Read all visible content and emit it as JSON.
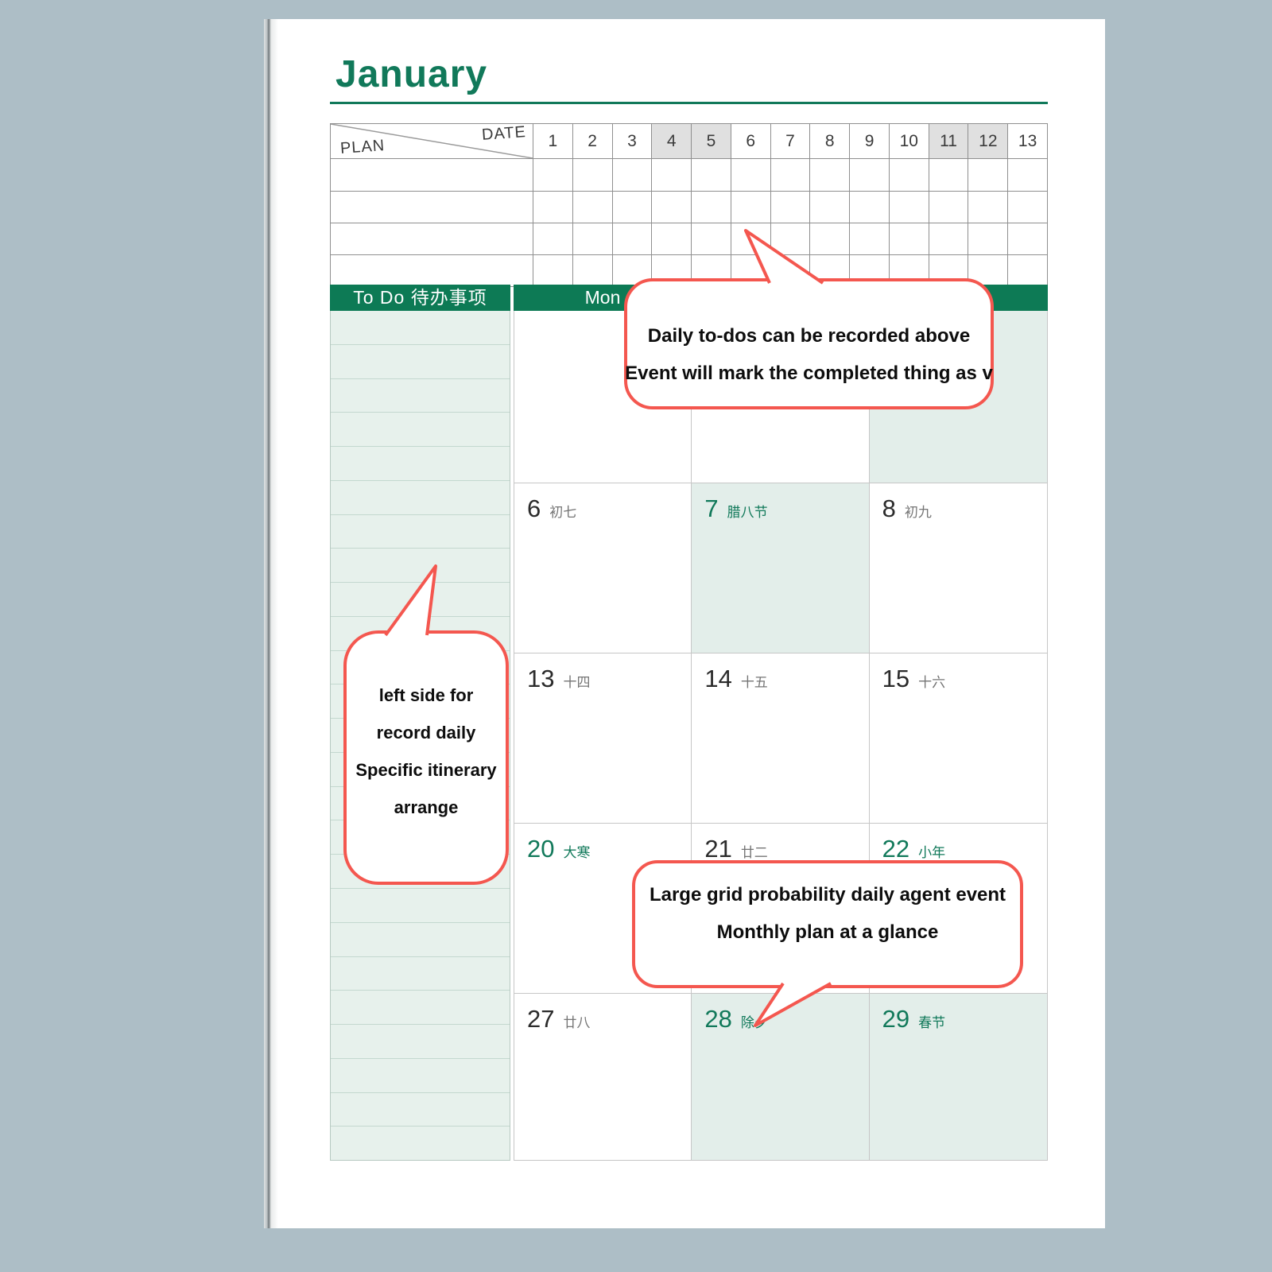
{
  "header": {
    "month": "January"
  },
  "plan_table": {
    "plan_label": "PLAN",
    "date_label": "DATE",
    "dates": [
      {
        "label": "1",
        "highlighted": false
      },
      {
        "label": "2",
        "highlighted": false
      },
      {
        "label": "3",
        "highlighted": false
      },
      {
        "label": "4",
        "highlighted": true
      },
      {
        "label": "5",
        "highlighted": true
      },
      {
        "label": "6",
        "highlighted": false
      },
      {
        "label": "7",
        "highlighted": false
      },
      {
        "label": "8",
        "highlighted": false
      },
      {
        "label": "9",
        "highlighted": false
      },
      {
        "label": "10",
        "highlighted": false
      },
      {
        "label": "11",
        "highlighted": true
      },
      {
        "label": "12",
        "highlighted": true
      },
      {
        "label": "13",
        "highlighted": false
      }
    ],
    "body_row_count": 4
  },
  "week_bar": {
    "todo_label": "To Do  待办事项",
    "day_label": "Mon"
  },
  "todo_column": {
    "row_count": 25
  },
  "calendar": {
    "rows": [
      {
        "cells": [
          {
            "num": "",
            "label": "",
            "green": false,
            "mint": false
          },
          {
            "num": "",
            "label": "",
            "green": false,
            "mint": false
          },
          {
            "num": "",
            "label": "",
            "green": false,
            "mint": true
          }
        ]
      },
      {
        "cells": [
          {
            "num": "6",
            "label": "初七",
            "green": false,
            "mint": false
          },
          {
            "num": "7",
            "label": "腊八节",
            "green": true,
            "mint": true
          },
          {
            "num": "8",
            "label": "初九",
            "green": false,
            "mint": false
          }
        ]
      },
      {
        "cells": [
          {
            "num": "13",
            "label": "十四",
            "green": false,
            "mint": false
          },
          {
            "num": "14",
            "label": "十五",
            "green": false,
            "mint": false
          },
          {
            "num": "15",
            "label": "十六",
            "green": false,
            "mint": false
          }
        ]
      },
      {
        "cells": [
          {
            "num": "20",
            "label": "大寒",
            "green": true,
            "mint": false
          },
          {
            "num": "21",
            "label": "廿二",
            "green": false,
            "mint": false
          },
          {
            "num": "22",
            "label": "小年",
            "green": true,
            "mint": false
          }
        ]
      },
      {
        "cells": [
          {
            "num": "27",
            "label": "廿八",
            "green": false,
            "mint": false
          },
          {
            "num": "28",
            "label": "除夕",
            "green": true,
            "mint": true
          },
          {
            "num": "29",
            "label": "春节",
            "green": true,
            "mint": true
          }
        ]
      }
    ]
  },
  "callouts": {
    "top": {
      "lines": [
        "Daily to-dos can be recorded above",
        "Event will mark the completed thing as v"
      ]
    },
    "left": {
      "lines": [
        "left side for",
        "record daily",
        "Specific itinerary",
        "arrange"
      ]
    },
    "bottom": {
      "lines": [
        "Large grid probability daily agent event",
        "Monthly plan at a glance"
      ]
    }
  },
  "colors": {
    "background": "#adbec6",
    "accent_green": "#11795a",
    "bar_green": "#0d7a55",
    "mint_cell": "#e3eeea",
    "callout_border_red": "#f4574f",
    "date_highlight_gray": "#e0e0e0"
  }
}
